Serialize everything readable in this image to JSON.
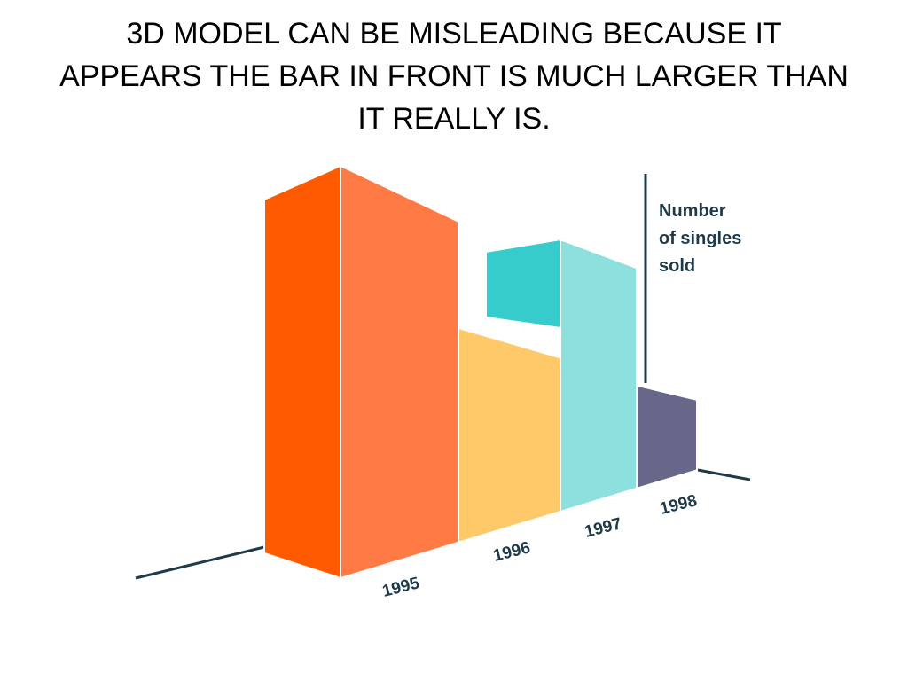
{
  "slide": {
    "title": "3D MODEL CAN BE MISLEADING BECAUSE IT APPEARS THE BAR IN FRONT IS MUCH LARGER THAN IT REALLY IS."
  },
  "chart_data": {
    "type": "bar",
    "style": "3d-perspective",
    "title": "",
    "xlabel": "",
    "ylabel": "Number of singles sold",
    "ylabel_lines": [
      "Number",
      "of singles",
      "sold"
    ],
    "categories": [
      "1995",
      "1996",
      "1997",
      "1998"
    ],
    "values": [
      100,
      52,
      66,
      25
    ],
    "ylim": [
      0,
      100
    ],
    "grid": false,
    "legend": "none",
    "colors": {
      "1995": {
        "front": "#ff7a45",
        "side": "#ff5a00"
      },
      "1996": {
        "front": "#ffc96a",
        "side": "#ffc96a"
      },
      "1997": {
        "front": "#8ee0df",
        "side": "#35cccb"
      },
      "1998": {
        "front": "#676789",
        "side": "#676789"
      },
      "axis": "#1e3a4a"
    }
  }
}
